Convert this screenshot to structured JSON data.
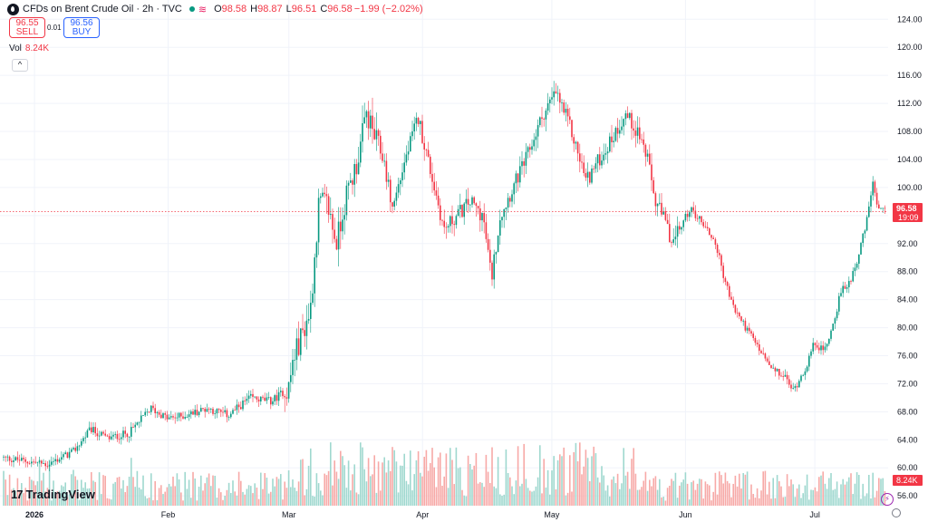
{
  "header": {
    "title": "CFDs on Brent Crude Oil · 2h · TVC",
    "open_label": "O",
    "open": "98.58",
    "high_label": "H",
    "high": "98.87",
    "low_label": "L",
    "low": "96.51",
    "close_label": "C",
    "close": "96.58",
    "change": "−1.99 (−2.02%)",
    "wave_glyph": "≋"
  },
  "trade": {
    "sell_price": "96.55",
    "sell_label": "SELL",
    "buy_price": "96.56",
    "buy_label": "BUY",
    "spread": "0.01"
  },
  "volume": {
    "label": "Vol",
    "value": "8.24K"
  },
  "collapse_glyph": "^",
  "logo": {
    "mark": "17",
    "text": "TradingView"
  },
  "bolt_glyph": "⚡",
  "price_labels": {
    "last": "96.58",
    "countdown": "19:09",
    "volume": "8.24K"
  },
  "colors": {
    "up": "#089981",
    "down": "#f23645",
    "vol_up": "#9fd8cf",
    "vol_down": "#f7a9a7"
  },
  "chart_data": {
    "type": "candlestick",
    "y_ticks": [
      "124.00",
      "120.00",
      "116.00",
      "112.00",
      "108.00",
      "104.00",
      "100.00",
      "96.00",
      "92.00",
      "88.00",
      "84.00",
      "80.00",
      "76.00",
      "72.00",
      "68.00",
      "64.00",
      "60.00",
      "56.00"
    ],
    "ylim": [
      54.6,
      125.2
    ],
    "x_labels": [
      {
        "label": "2026",
        "x": 0
      },
      {
        "label": "Feb",
        "x": 31
      },
      {
        "label": "Mar",
        "x": 59
      },
      {
        "label": "Apr",
        "x": 90
      },
      {
        "label": "May",
        "x": 120
      },
      {
        "label": "Jun",
        "x": 151
      },
      {
        "label": "Jul",
        "x": 181
      }
    ],
    "xlim": [
      -8,
      198
    ],
    "last_price": 96.58,
    "price_path": [
      [
        -8,
        61.5
      ],
      [
        3,
        60.5
      ],
      [
        9,
        62.3
      ],
      [
        13,
        65.5
      ],
      [
        17,
        64.2
      ],
      [
        22,
        65.0
      ],
      [
        27,
        68.5
      ],
      [
        31,
        67.0
      ],
      [
        35,
        67.5
      ],
      [
        40,
        68.5
      ],
      [
        45,
        67.5
      ],
      [
        50,
        70.0
      ],
      [
        55,
        69.5
      ],
      [
        59,
        71.5
      ],
      [
        60,
        75.5
      ],
      [
        64,
        82.5
      ],
      [
        66,
        98.0
      ],
      [
        68,
        97.5
      ],
      [
        70,
        92.0
      ],
      [
        72,
        98.0
      ],
      [
        75,
        104.0
      ],
      [
        77,
        110.5
      ],
      [
        79,
        107.0
      ],
      [
        81,
        104.0
      ],
      [
        83,
        97.0
      ],
      [
        86,
        104.0
      ],
      [
        89,
        110.0
      ],
      [
        92,
        102.0
      ],
      [
        95,
        94.0
      ],
      [
        98,
        96.0
      ],
      [
        101,
        98.0
      ],
      [
        104,
        96.0
      ],
      [
        106,
        87.0
      ],
      [
        108,
        96.0
      ],
      [
        111,
        100.0
      ],
      [
        114,
        104.0
      ],
      [
        118,
        110.5
      ],
      [
        121,
        113.5
      ],
      [
        124,
        109.0
      ],
      [
        126,
        105.0
      ],
      [
        128,
        101.0
      ],
      [
        131,
        104.0
      ],
      [
        134,
        107.0
      ],
      [
        137,
        110.5
      ],
      [
        140,
        108.0
      ],
      [
        142,
        104.5
      ],
      [
        144,
        98.0
      ],
      [
        146,
        95.5
      ],
      [
        148,
        92.0
      ],
      [
        152,
        97.0
      ],
      [
        155,
        95.0
      ],
      [
        158,
        92.0
      ],
      [
        160,
        87.0
      ],
      [
        162,
        83.0
      ],
      [
        165,
        80.0
      ],
      [
        168,
        77.0
      ],
      [
        171,
        74.0
      ],
      [
        174,
        73.0
      ],
      [
        176,
        71.0
      ],
      [
        179,
        74.5
      ],
      [
        181,
        78.0
      ],
      [
        183,
        76.5
      ],
      [
        185,
        80.0
      ],
      [
        187,
        85.0
      ],
      [
        189,
        86.5
      ],
      [
        191,
        90.0
      ],
      [
        193,
        95.0
      ],
      [
        194.5,
        101.0
      ],
      [
        195.5,
        96.6
      ]
    ],
    "volume_max_k": 45
  }
}
